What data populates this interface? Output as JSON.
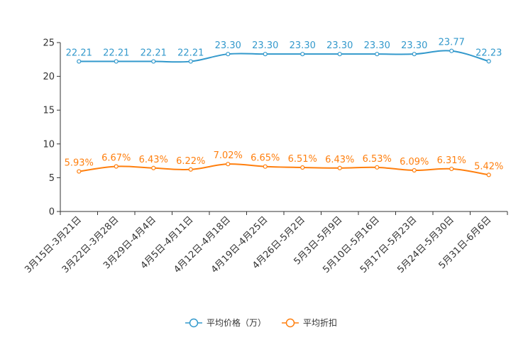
{
  "chart_data": {
    "type": "line",
    "title": "",
    "xlabel": "",
    "ylabel": "",
    "ylim": [
      0,
      25
    ],
    "yticks": [
      "0",
      "5",
      "10",
      "15",
      "20",
      "25"
    ],
    "categories": [
      "3月15日-3月21日",
      "3月22日-3月28日",
      "3月29日-4月4日",
      "4月5日-4月11日",
      "4月12日-4月18日",
      "4月19日-4月25日",
      "4月26日-5月2日",
      "5月3日-5月9日",
      "5月10日-5月16日",
      "5月17日-5月23日",
      "5月24日-5月30日",
      "5月31日-6月6日"
    ],
    "series": [
      {
        "name": "平均价格（万）",
        "color": "#3399cc",
        "values": [
          22.21,
          22.21,
          22.21,
          22.21,
          23.3,
          23.3,
          23.3,
          23.3,
          23.3,
          23.3,
          23.77,
          22.23
        ],
        "labels": [
          "22.21",
          "22.21",
          "22.21",
          "22.21",
          "23.30",
          "23.30",
          "23.30",
          "23.30",
          "23.30",
          "23.30",
          "23.77",
          "22.23"
        ]
      },
      {
        "name": "平均折扣",
        "color": "#ff7f0e",
        "values": [
          5.93,
          6.67,
          6.43,
          6.22,
          7.02,
          6.65,
          6.51,
          6.43,
          6.53,
          6.09,
          6.31,
          5.42
        ],
        "labels": [
          "5.93%",
          "6.67%",
          "6.43%",
          "6.22%",
          "7.02%",
          "6.65%",
          "6.51%",
          "6.43%",
          "6.53%",
          "6.09%",
          "6.31%",
          "5.42%"
        ]
      }
    ],
    "legend": "bottom-center"
  }
}
